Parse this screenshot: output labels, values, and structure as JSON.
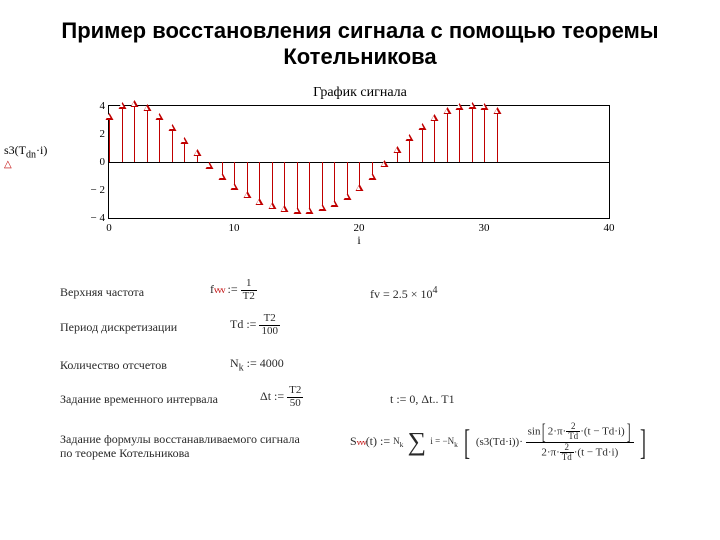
{
  "title": "Пример восстановления сигнала с помощью теоремы Котельникова",
  "chart": {
    "type": "stem",
    "title": "График сигнала",
    "ylabel": "s3(T_dn·i)",
    "xlabel": "i",
    "xlim": [
      0,
      40
    ],
    "ylim": [
      -4,
      4
    ],
    "xtick_step": 10,
    "ytick_step": 2,
    "yticks": [
      4,
      2,
      0,
      -2,
      -4
    ],
    "xticks": [
      0,
      10,
      20,
      30,
      40
    ],
    "line_color": "#c00000",
    "marker": "triangle-open",
    "background_color": "#ffffff",
    "values": [
      3.0,
      3.8,
      3.9,
      3.6,
      3.0,
      2.2,
      1.3,
      0.4,
      -0.5,
      -1.3,
      -2.0,
      -2.6,
      -3.1,
      -3.4,
      -3.6,
      -3.7,
      -3.7,
      -3.5,
      -3.2,
      -2.7,
      -2.1,
      -1.3,
      -0.4,
      0.6,
      1.5,
      2.3,
      2.9,
      3.4,
      3.7,
      3.8,
      3.7,
      3.4
    ]
  },
  "rows": {
    "r1": {
      "label": "Верхняя частота",
      "eq_lhs": "fv",
      "eq_rhs_num": "1",
      "eq_rhs_den": "T2",
      "eq2": "fv  = 2.5 × 10",
      "eq2_sup": "4"
    },
    "r2": {
      "label": "Период дискретизации",
      "eq_lhs": "Td",
      "eq_rhs_num": "T2",
      "eq_rhs_den": "100"
    },
    "r3": {
      "label": "Количество отсчетов",
      "eq_lhs": "N",
      "eq_sub": "k",
      "eq_rhs": "4000"
    },
    "r4": {
      "label": "Задание временного интервала",
      "eq_lhs": "Δt",
      "eq_rhs_num": "T2",
      "eq_rhs_den": "50",
      "eq2": "t := 0, Δt.. T1"
    },
    "r5": {
      "label1": "Задание формулы восстанавливаемого сигнала",
      "label2": "по теореме Котельникова"
    }
  }
}
